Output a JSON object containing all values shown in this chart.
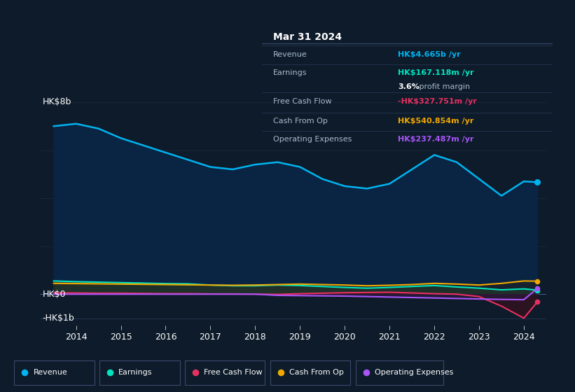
{
  "background_color": "#0d1b2a",
  "plot_bg_color": "#0d1b2a",
  "years": [
    2013.5,
    2014,
    2014.5,
    2015,
    2015.5,
    2016,
    2016.5,
    2017,
    2017.5,
    2018,
    2018.5,
    2019,
    2019.5,
    2020,
    2020.5,
    2021,
    2021.5,
    2022,
    2022.5,
    2023,
    2023.5,
    2024,
    2024.3
  ],
  "revenue": [
    7.0,
    7.1,
    6.9,
    6.5,
    6.2,
    5.9,
    5.6,
    5.3,
    5.2,
    5.4,
    5.5,
    5.3,
    4.8,
    4.5,
    4.4,
    4.6,
    5.2,
    5.8,
    5.5,
    4.8,
    4.1,
    4.7,
    4.665
  ],
  "earnings": [
    0.55,
    0.52,
    0.5,
    0.48,
    0.46,
    0.44,
    0.43,
    0.38,
    0.35,
    0.35,
    0.38,
    0.36,
    0.32,
    0.28,
    0.25,
    0.28,
    0.32,
    0.36,
    0.3,
    0.25,
    0.18,
    0.22,
    0.167
  ],
  "free_cash_flow": [
    0.05,
    0.05,
    0.04,
    0.04,
    0.03,
    0.02,
    0.02,
    0.01,
    0.01,
    0.0,
    -0.01,
    0.02,
    0.04,
    0.06,
    0.07,
    0.08,
    0.05,
    0.02,
    0.0,
    -0.1,
    -0.5,
    -1.0,
    -0.328
  ],
  "cash_from_op": [
    0.45,
    0.44,
    0.43,
    0.42,
    0.41,
    0.4,
    0.39,
    0.38,
    0.37,
    0.38,
    0.4,
    0.42,
    0.4,
    0.38,
    0.35,
    0.37,
    0.4,
    0.45,
    0.42,
    0.38,
    0.45,
    0.55,
    0.541
  ],
  "operating_expenses": [
    0.0,
    0.0,
    0.0,
    0.0,
    0.0,
    0.0,
    0.0,
    0.0,
    0.0,
    0.0,
    -0.05,
    -0.06,
    -0.07,
    -0.08,
    -0.1,
    -0.12,
    -0.14,
    -0.16,
    -0.18,
    -0.2,
    -0.22,
    -0.23,
    0.237
  ],
  "revenue_color": "#00b4f0",
  "earnings_color": "#00e5c0",
  "free_cash_flow_color": "#e83060",
  "cash_from_op_color": "#f0a800",
  "operating_expenses_color": "#a855f7",
  "xticks": [
    2014,
    2015,
    2016,
    2017,
    2018,
    2019,
    2020,
    2021,
    2022,
    2023,
    2024
  ],
  "info_box": {
    "date": "Mar 31 2024",
    "revenue_label": "Revenue",
    "revenue_value": "HK$4.665b",
    "revenue_color": "#00b4f0",
    "earnings_label": "Earnings",
    "earnings_value": "HK$167.118m",
    "earnings_color": "#00e5c0",
    "margin_pct": "3.6%",
    "margin_rest": " profit margin",
    "fcf_label": "Free Cash Flow",
    "fcf_value": "-HK$327.751m",
    "fcf_color": "#e83060",
    "cashop_label": "Cash From Op",
    "cashop_value": "HK$540.854m",
    "cashop_color": "#f0a800",
    "opex_label": "Operating Expenses",
    "opex_value": "HK$237.487m",
    "opex_color": "#a855f7"
  },
  "legend_labels": [
    "Revenue",
    "Earnings",
    "Free Cash Flow",
    "Cash From Op",
    "Operating Expenses"
  ],
  "legend_colors": [
    "#00b4f0",
    "#00e5c0",
    "#e83060",
    "#f0a800",
    "#a855f7"
  ]
}
